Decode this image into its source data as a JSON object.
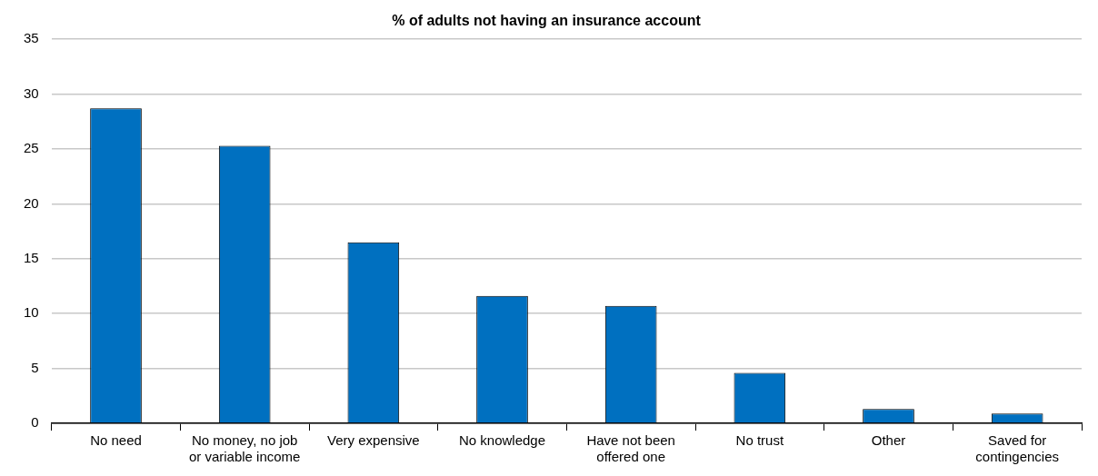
{
  "chart_data": {
    "type": "bar",
    "title": "% of adults not having an insurance account",
    "categories": [
      "No need",
      "No money, no job or variable income",
      "Very expensive",
      "No knowledge",
      "Have not been offered one",
      "No trust",
      "Other",
      "Saved for contingencies"
    ],
    "values": [
      28.7,
      25.3,
      16.5,
      11.6,
      10.7,
      4.6,
      1.3,
      0.9
    ],
    "color": "#0070c0",
    "ylim": [
      0,
      35
    ],
    "yticks": [
      0,
      5,
      10,
      15,
      20,
      25,
      30,
      35
    ],
    "grid": "y",
    "legend": false
  }
}
